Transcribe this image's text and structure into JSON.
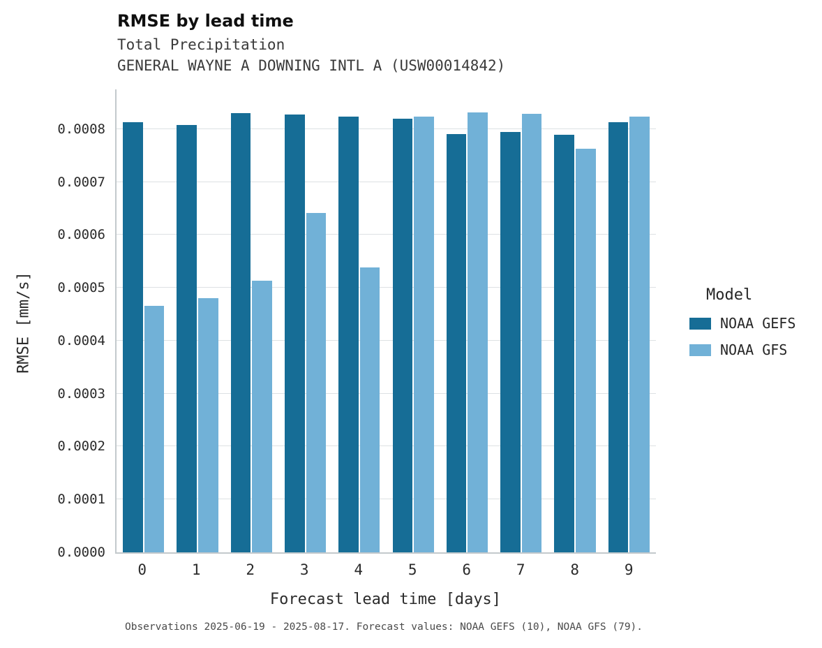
{
  "header": {
    "title": "RMSE by lead time",
    "subtitle1": "Total Precipitation",
    "subtitle2": "GENERAL WAYNE A DOWNING INTL A (USW00014842)"
  },
  "legend": {
    "title": "Model",
    "items": [
      {
        "label": "NOAA GEFS",
        "color": "#166d96"
      },
      {
        "label": "NOAA GFS",
        "color": "#71b1d7"
      }
    ]
  },
  "caption": "Observations 2025-06-19 - 2025-08-17. Forecast values: NOAA GEFS (10), NOAA GFS (79).",
  "chart_data": {
    "type": "bar",
    "title": "RMSE by lead time",
    "subtitle": "Total Precipitation — GENERAL WAYNE A DOWNING INTL A (USW00014842)",
    "xlabel": "Forecast lead time [days]",
    "ylabel": "RMSE [mm/s]",
    "categories": [
      "0",
      "1",
      "2",
      "3",
      "4",
      "5",
      "6",
      "7",
      "8",
      "9"
    ],
    "series": [
      {
        "name": "NOAA GEFS",
        "color": "#166d96",
        "values": [
          0.000813,
          0.000808,
          0.00083,
          0.000828,
          0.000823,
          0.00082,
          0.000791,
          0.000795,
          0.000789,
          0.000813
        ]
      },
      {
        "name": "NOAA GFS",
        "color": "#71b1d7",
        "values": [
          0.000466,
          0.000481,
          0.000513,
          0.000641,
          0.000539,
          0.000823,
          0.000832,
          0.000829,
          0.000763,
          0.000824
        ]
      }
    ],
    "ylim": [
      0,
      0.000875
    ],
    "yticks": [
      0.0,
      0.0001,
      0.0002,
      0.0003,
      0.0004,
      0.0005,
      0.0006,
      0.0007,
      0.0008
    ],
    "ytick_labels": [
      "0.0000",
      "0.0001",
      "0.0002",
      "0.0003",
      "0.0004",
      "0.0005",
      "0.0006",
      "0.0007",
      "0.0008"
    ],
    "grid": true,
    "legend_position": "right"
  }
}
